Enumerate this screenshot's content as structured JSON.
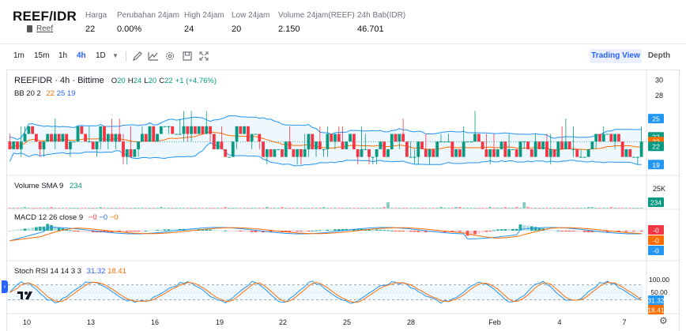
{
  "header": {
    "pair": "REEF/IDR",
    "sub_link": "Reef",
    "stats": [
      {
        "label": "Harga",
        "value": "22"
      },
      {
        "label": "Perubahan 24jam",
        "value": "0.00%"
      },
      {
        "label": "High 24jam",
        "value": "24"
      },
      {
        "label": "Low 24jam",
        "value": "20"
      },
      {
        "label": "Volume 24jam(REEF)",
        "value": "2.150"
      },
      {
        "label": "24h Bab(IDR)",
        "value": "46.701"
      }
    ]
  },
  "toolbar": {
    "intervals": [
      "1m",
      "15m",
      "1h",
      "4h",
      "1D"
    ],
    "active_interval": "4h",
    "icons": [
      "chevron-down-icon",
      "draw-icon",
      "indicators-icon",
      "settings-icon",
      "snapshot-icon",
      "fullscreen-icon"
    ],
    "trading_view_label": "Trading View",
    "depth_label": "Depth"
  },
  "chart_overlay": {
    "title": "REEFIDR · 4h · Bittime",
    "o_label": "O",
    "o_val": "20",
    "h_label": "H",
    "h_val": "24",
    "l_label": "L",
    "l_val": "20",
    "c_label": "C",
    "c_val": "22",
    "change": "+1 (+4.76%)",
    "bb_label": "BB 20 2",
    "bb_mid": "22",
    "bb_upper": "25",
    "bb_lower": "19",
    "volume_label": "Volume SMA 9",
    "volume_val": "234",
    "macd_label": "MACD 12 26 close 9",
    "macd_v1": "−0",
    "macd_v2": "−0",
    "macd_v3": "−0",
    "stoch_label": "Stoch RSI 14 14 3 3",
    "stoch_k": "31.32",
    "stoch_d": "18.41"
  },
  "colors": {
    "up": "#089981",
    "down": "#f23645",
    "bb_band": "#2196f3",
    "bb_basis": "#ff6d00",
    "macd_line": "#2196f3",
    "signal_line": "#ff6d00",
    "stoch_k": "#2196f3",
    "stoch_d": "#ff6d00",
    "accent": "#2962ff"
  },
  "chart_data": {
    "type": "candlestick",
    "interval": "4h",
    "x_tick_labels": [
      "10",
      "13",
      "16",
      "19",
      "22",
      "25",
      "28",
      "Feb",
      "4",
      "7"
    ],
    "price_axis_ticks": [
      "30",
      "28"
    ],
    "price_badges": {
      "bb_upper": "25",
      "last": "22",
      "bb_mid": "22",
      "close": "22",
      "bb_lower": "19"
    },
    "price_range": [
      18,
      31
    ],
    "volume_axis_ticks": [
      "25K"
    ],
    "volume_badge": "234",
    "macd_badges": [
      "-0",
      "-0",
      "-0"
    ],
    "stoch_axis_ticks": [
      "100.00",
      "50.00"
    ],
    "stoch_badges": [
      "31.32",
      "18.41"
    ],
    "stoch_range": [
      0,
      100
    ],
    "last_candle": {
      "open": 20,
      "high": 24,
      "low": 20,
      "close": 22
    }
  }
}
